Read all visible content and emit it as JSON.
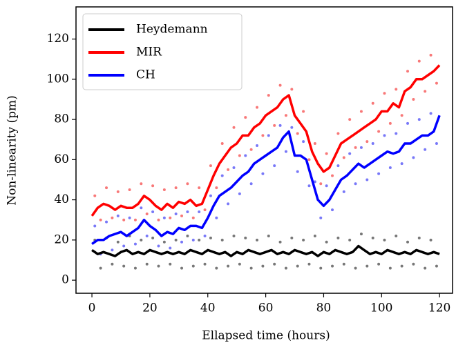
{
  "chart_data": {
    "type": "line",
    "xlabel": "Ellapsed time (hours)",
    "ylabel": "Non-linearity (pm)",
    "xlim": [
      -5.5,
      124.5
    ],
    "ylim": [
      -6.5,
      136
    ],
    "xticks": [
      0,
      20,
      40,
      60,
      80,
      100,
      120
    ],
    "yticks": [
      0,
      20,
      40,
      60,
      80,
      100,
      120
    ],
    "legend": "upper left",
    "x": [
      0,
      2,
      4,
      6,
      8,
      10,
      12,
      14,
      16,
      18,
      20,
      22,
      24,
      26,
      28,
      30,
      32,
      34,
      36,
      38,
      40,
      42,
      44,
      46,
      48,
      50,
      52,
      54,
      56,
      58,
      60,
      62,
      64,
      66,
      68,
      70,
      72,
      74,
      76,
      78,
      80,
      82,
      84,
      86,
      88,
      90,
      92,
      94,
      96,
      98,
      100,
      102,
      104,
      106,
      108,
      110,
      112,
      114,
      116,
      118,
      120
    ],
    "series": [
      {
        "name": "Heydemann",
        "color": "#000000",
        "values": [
          15,
          13,
          14,
          13,
          12,
          14,
          15,
          13,
          14,
          13,
          15,
          14,
          13,
          14,
          13,
          14,
          13,
          15,
          14,
          13,
          15,
          14,
          13,
          14,
          12,
          14,
          13,
          15,
          14,
          13,
          14,
          15,
          13,
          14,
          13,
          15,
          14,
          13,
          14,
          12,
          14,
          13,
          15,
          14,
          13,
          14,
          17,
          15,
          13,
          14,
          13,
          15,
          14,
          13,
          14,
          13,
          15,
          14,
          13,
          14,
          13
        ]
      },
      {
        "name": "MIR",
        "color": "#ff0000",
        "values": [
          32,
          36,
          38,
          37,
          35,
          37,
          36,
          36,
          38,
          42,
          40,
          37,
          35,
          38,
          36,
          39,
          38,
          40,
          37,
          38,
          45,
          52,
          58,
          62,
          66,
          68,
          72,
          72,
          76,
          78,
          82,
          84,
          86,
          90,
          92,
          82,
          78,
          74,
          64,
          58,
          54,
          56,
          62,
          68,
          70,
          72,
          74,
          76,
          78,
          80,
          84,
          84,
          88,
          86,
          94,
          96,
          100,
          100,
          102,
          104,
          107
        ]
      },
      {
        "name": "CH",
        "color": "#0000ff",
        "values": [
          18,
          20,
          20,
          22,
          23,
          24,
          22,
          24,
          26,
          30,
          27,
          25,
          22,
          24,
          23,
          26,
          25,
          27,
          27,
          26,
          31,
          37,
          42,
          44,
          46,
          49,
          52,
          54,
          58,
          60,
          62,
          64,
          66,
          71,
          74,
          62,
          62,
          60,
          50,
          40,
          37,
          40,
          45,
          50,
          52,
          55,
          58,
          56,
          58,
          60,
          62,
          64,
          63,
          64,
          68,
          68,
          70,
          72,
          72,
          74,
          82
        ]
      }
    ],
    "points_x": [
      1,
      3,
      5,
      7,
      9,
      11,
      13,
      15,
      17,
      19,
      21,
      23,
      25,
      27,
      29,
      31,
      33,
      35,
      37,
      39,
      41,
      43,
      45,
      47,
      49,
      51,
      53,
      55,
      57,
      59,
      61,
      63,
      65,
      67,
      69,
      71,
      73,
      75,
      77,
      79,
      81,
      83,
      85,
      87,
      89,
      91,
      93,
      95,
      97,
      99,
      101,
      103,
      105,
      107,
      109,
      111,
      113,
      115,
      117,
      119
    ],
    "points": [
      {
        "color": "#777777",
        "values": [
          20,
          6,
          21,
          8,
          19,
          7,
          22,
          6,
          20,
          8,
          21,
          7,
          19,
          8,
          20,
          6,
          22,
          7,
          20,
          8,
          21,
          6,
          20,
          7,
          22,
          8,
          21,
          6,
          20,
          7,
          22,
          8,
          19,
          6,
          21,
          7,
          20,
          8,
          22,
          6,
          19,
          7,
          21,
          8,
          20,
          6,
          23,
          7,
          21,
          8,
          20,
          6,
          22,
          7,
          19,
          8,
          21,
          6,
          20,
          7
        ]
      },
      {
        "color": "#f87878",
        "values": [
          42,
          30,
          46,
          31,
          44,
          30,
          45,
          30,
          48,
          33,
          47,
          30,
          45,
          31,
          46,
          32,
          48,
          31,
          46,
          35,
          57,
          46,
          68,
          55,
          76,
          62,
          81,
          65,
          86,
          72,
          92,
          77,
          97,
          82,
          95,
          73,
          84,
          60,
          68,
          48,
          63,
          52,
          73,
          61,
          80,
          66,
          84,
          69,
          88,
          74,
          93,
          78,
          95,
          82,
          104,
          90,
          109,
          94,
          112,
          98
        ]
      },
      {
        "color": "#7878f8",
        "values": [
          27,
          13,
          29,
          15,
          32,
          17,
          31,
          18,
          36,
          22,
          34,
          17,
          31,
          16,
          33,
          19,
          34,
          20,
          34,
          22,
          42,
          31,
          52,
          38,
          56,
          43,
          62,
          48,
          67,
          53,
          72,
          57,
          77,
          64,
          76,
          54,
          69,
          47,
          49,
          31,
          47,
          35,
          57,
          44,
          63,
          48,
          66,
          50,
          68,
          53,
          72,
          56,
          73,
          58,
          78,
          61,
          80,
          65,
          83,
          68
        ]
      }
    ]
  }
}
